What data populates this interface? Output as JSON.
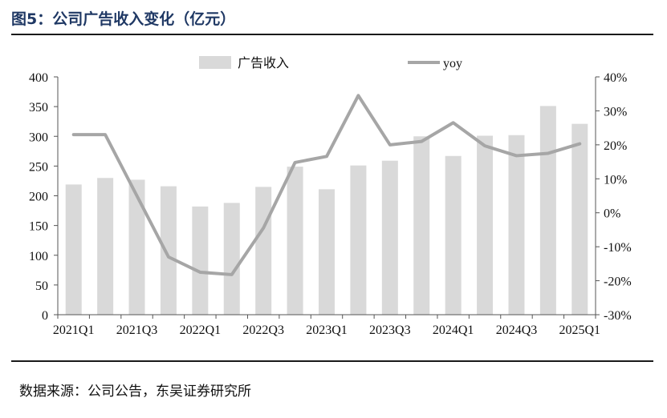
{
  "title": "图5：公司广告收入变化（亿元）",
  "source": "数据来源：公司公告，东吴证券研究所",
  "colors": {
    "bar": "#d9d9d9",
    "line": "#a6a6a6",
    "text": "#1f3864"
  },
  "chart_data": {
    "type": "bar",
    "categories": [
      "2021Q1",
      "2021Q2",
      "2021Q3",
      "2021Q4",
      "2022Q1",
      "2022Q2",
      "2022Q3",
      "2022Q4",
      "2023Q1",
      "2023Q2",
      "2023Q3",
      "2023Q4",
      "2024Q1",
      "2024Q2",
      "2024Q3",
      "2024Q4",
      "2025Q1"
    ],
    "x_tick_labels": [
      "2021Q1",
      "2021Q3",
      "2022Q1",
      "2022Q3",
      "2023Q1",
      "2023Q3",
      "2024Q1",
      "2024Q3",
      "2025Q1"
    ],
    "series": [
      {
        "name": "广告收入",
        "type": "bar",
        "axis": "left",
        "values": [
          219,
          230,
          227,
          216,
          182,
          188,
          215,
          249,
          211,
          251,
          259,
          300,
          267,
          301,
          302,
          351,
          321
        ]
      },
      {
        "name": "yoy",
        "type": "line",
        "axis": "right",
        "values": [
          23.0,
          23.0,
          5.0,
          -13.0,
          -17.5,
          -18.2,
          -4.5,
          14.8,
          16.6,
          34.5,
          20.0,
          21.0,
          26.5,
          19.7,
          16.8,
          17.5,
          20.3
        ]
      }
    ],
    "y_left": {
      "range": [
        0,
        400
      ],
      "ticks": [
        "0",
        "50",
        "100",
        "150",
        "200",
        "250",
        "300",
        "350",
        "400"
      ]
    },
    "y_right": {
      "range": [
        -30,
        40
      ],
      "ticks": [
        "-30%",
        "-20%",
        "-10%",
        "0%",
        "10%",
        "20%",
        "30%",
        "40%"
      ]
    },
    "legend": {
      "position": "top",
      "bar_label": "广告收入",
      "line_label": "yoy"
    },
    "grid": false
  }
}
